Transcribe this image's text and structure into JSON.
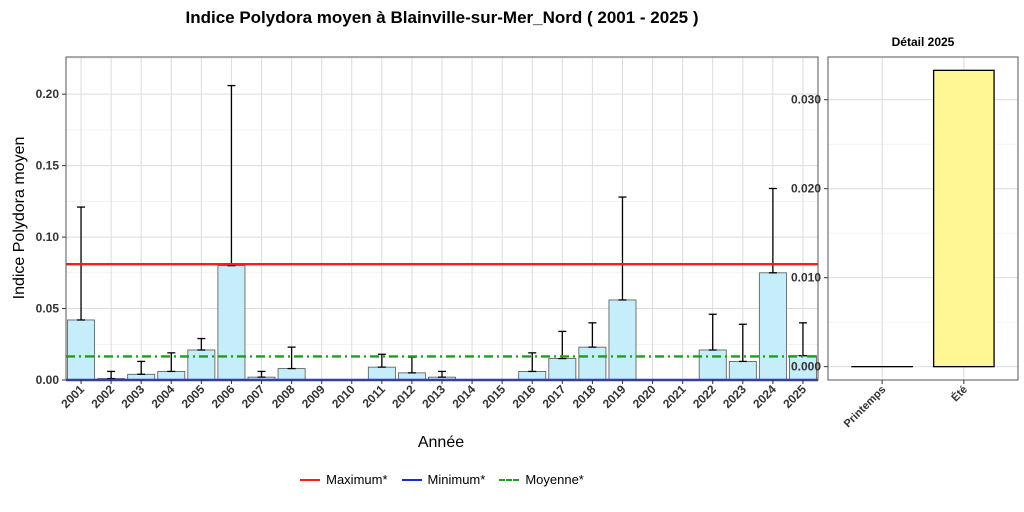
{
  "title": "Indice Polydora moyen à Blainville-sur-Mer_Nord ( 2001 - 2025 )",
  "chart_data": [
    {
      "type": "bar",
      "xlabel": "Année",
      "ylabel": "Indice Polydora moyen",
      "ylim": [
        0,
        0.226
      ],
      "yticks": [
        0.0,
        0.05,
        0.1,
        0.15,
        0.2
      ],
      "ytick_labels": [
        "0.00",
        "0.05",
        "0.10",
        "0.15",
        "0.20"
      ],
      "grid": true,
      "categories": [
        "2001",
        "2002",
        "2003",
        "2004",
        "2005",
        "2006",
        "2007",
        "2008",
        "2009",
        "2010",
        "2011",
        "2012",
        "2013",
        "2014",
        "2015",
        "2016",
        "2017",
        "2018",
        "2019",
        "2020",
        "2021",
        "2022",
        "2023",
        "2024",
        "2025"
      ],
      "values": [
        0.042,
        0.001,
        0.004,
        0.006,
        0.021,
        0.08,
        0.002,
        0.008,
        0,
        0,
        0.009,
        0.005,
        0.002,
        0,
        0,
        0.006,
        0.015,
        0.023,
        0.056,
        0,
        0,
        0.021,
        0.013,
        0.075,
        0.017
      ],
      "error_upper": [
        0.121,
        0.006,
        0.013,
        0.019,
        0.029,
        0.206,
        0.006,
        0.023,
        null,
        null,
        0.018,
        0.016,
        0.006,
        null,
        null,
        0.019,
        0.034,
        0.04,
        0.128,
        null,
        null,
        0.046,
        0.039,
        0.134,
        0.04
      ],
      "bar_color": "#c6eefa",
      "reference_lines": [
        {
          "name": "Maximum*",
          "value": 0.081,
          "color": "#ff1a1a",
          "style": "solid"
        },
        {
          "name": "Minimum*",
          "value": 0.0,
          "color": "#1a2bd6",
          "style": "solid"
        },
        {
          "name": "Moyenne*",
          "value": 0.0165,
          "color": "#1e9e1e",
          "style": "dashdot"
        }
      ],
      "legend_position": "bottom"
    },
    {
      "type": "bar",
      "title": "Détail 2025",
      "categories": [
        "Printemps",
        "Été"
      ],
      "values": [
        0.0,
        0.0333
      ],
      "ylim": [
        -0.0015,
        0.0348
      ],
      "yticks": [
        0.0,
        0.01,
        0.02,
        0.03
      ],
      "ytick_labels": [
        "0.000",
        "0.010",
        "0.020",
        "0.030"
      ],
      "bar_color": "#fff794",
      "grid": true
    }
  ]
}
